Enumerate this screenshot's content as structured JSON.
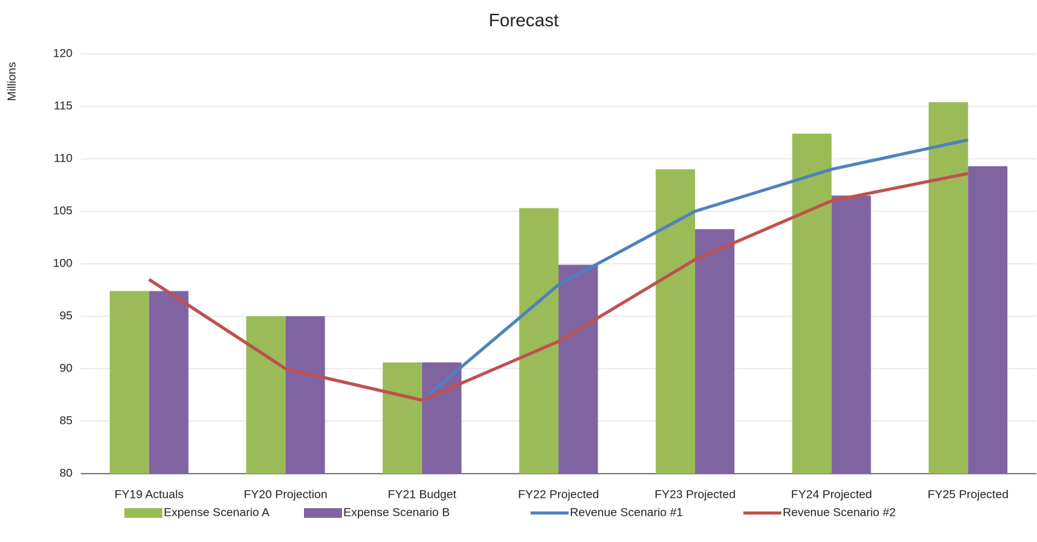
{
  "chart_data": {
    "type": "bar_line",
    "title": "Forecast",
    "y_label": "Millions",
    "categories": [
      "FY19 Actuals",
      "FY20 Projection",
      "FY21 Budget",
      "FY22 Projected",
      "FY23 Projected",
      "FY24 Projected",
      "FY25 Projected"
    ],
    "series": [
      {
        "name": "Expense Scenario A",
        "type": "bar",
        "color": "#9bbb59",
        "values": [
          97.4,
          95.0,
          90.6,
          105.3,
          109.0,
          112.4,
          115.4
        ]
      },
      {
        "name": "Expense Scenario B",
        "type": "bar",
        "color": "#8064a2",
        "values": [
          97.4,
          95.0,
          90.6,
          99.9,
          103.3,
          106.5,
          109.3
        ]
      },
      {
        "name": "Revenue Scenario #1",
        "type": "line",
        "color": "#4f81bd",
        "values": [
          98.5,
          90.0,
          87.0,
          98.0,
          105.0,
          109.0,
          111.8
        ]
      },
      {
        "name": "Revenue Scenario #2",
        "type": "line",
        "color": "#c0504d",
        "values": [
          98.5,
          90.0,
          87.0,
          92.6,
          100.4,
          106.0,
          108.6
        ]
      }
    ],
    "ylim": [
      80,
      120
    ],
    "yticks": [
      80,
      85,
      90,
      95,
      100,
      105,
      110,
      115,
      120
    ],
    "grid": true,
    "legend": "bottom"
  }
}
